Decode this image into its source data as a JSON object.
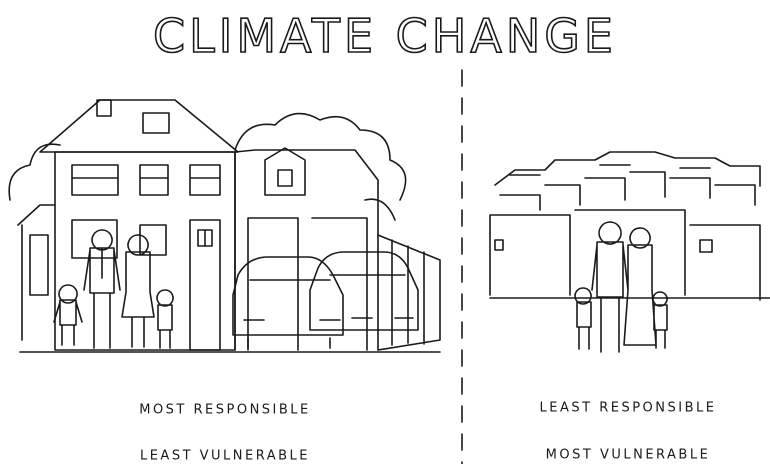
{
  "title": "CLIMATE CHANGE",
  "panels": [
    {
      "captions": [
        "MOST RESPONSIBLE",
        "LEAST VULNERABLE"
      ]
    },
    {
      "captions": [
        "LEAST RESPONSIBLE",
        "MOST VULNERABLE"
      ]
    }
  ]
}
